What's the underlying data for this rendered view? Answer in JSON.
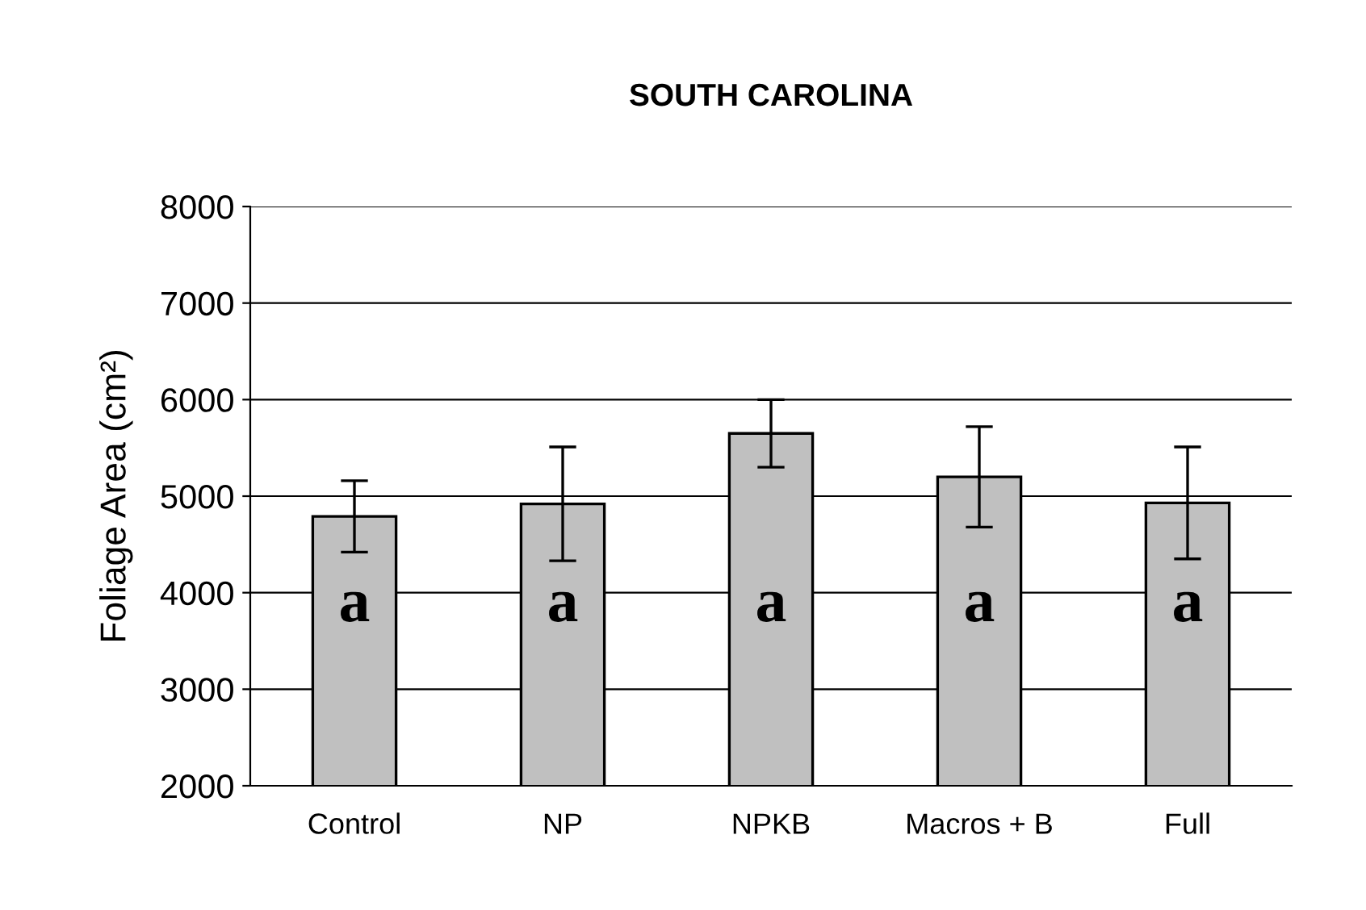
{
  "chart_data": {
    "type": "bar",
    "title": "SOUTH CAROLINA",
    "ylabel": "Foliage Area (cm²)",
    "categories": [
      "Control",
      "NP",
      "NPKB",
      "Macros + B",
      "Full"
    ],
    "values": [
      4790,
      4920,
      5650,
      5200,
      4930
    ],
    "errors": [
      370,
      590,
      350,
      520,
      580
    ],
    "color": "#c0c0c0",
    "ylim": [
      2000,
      8000
    ],
    "yticks": [
      2000,
      3000,
      4000,
      5000,
      6000,
      7000,
      8000
    ],
    "grid": "y",
    "legend": false,
    "annotations": [
      "a",
      "a",
      "a",
      "a",
      "a"
    ]
  }
}
